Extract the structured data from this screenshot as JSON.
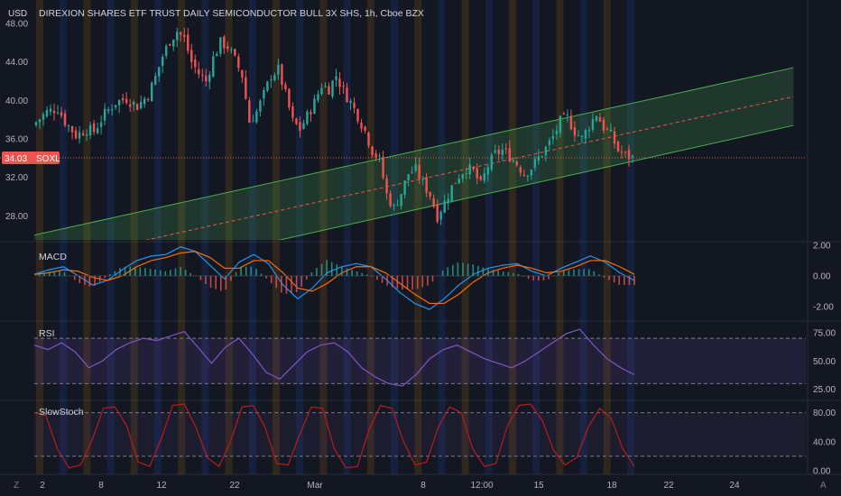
{
  "header": {
    "currency": "USD",
    "title": "DIREXION SHARES ETF TRUST DAILY SEMICONDUCTOR BULL 3X SHS, 1h, Cboe BZX"
  },
  "price_badge": {
    "value": "34.03",
    "symbol": "SOXL"
  },
  "footer": {
    "left_icon_label": "Z",
    "right_icon_label": "A"
  },
  "colors": {
    "background": "#131722",
    "up": "#26a69a",
    "down": "#ef5350",
    "channel_fill": "#4caf50",
    "channel_line": "#4caf50",
    "channel_mid": "#ef5350",
    "macd": "#2196f3",
    "signal": "#ff6d00",
    "rsi": "#7e57c2",
    "stoch": "#b71c1c",
    "axis_text": "#b2b5be"
  },
  "chart_data": [
    {
      "type": "candlestick",
      "title": "DIREXION SHARES ETF TRUST DAILY SEMICONDUCTOR BULL 3X SHS, 1h, Cboe BZX",
      "x_ticks": [
        "2",
        "8",
        "12",
        "22",
        "Mar",
        "8",
        "12:00",
        "15",
        "18",
        "22",
        "24"
      ],
      "y_ticks": [
        "48.00",
        "44.00",
        "40.00",
        "36.00",
        "32.00",
        "28.00"
      ],
      "ylim": [
        25.5,
        48.0
      ],
      "last_price": 34.03,
      "close_path": [
        [
          0,
          37.4
        ],
        [
          4,
          38.8
        ],
        [
          7,
          39.2
        ],
        [
          9,
          37.8
        ],
        [
          12,
          36.4
        ],
        [
          15,
          37.0
        ],
        [
          17,
          36.8
        ],
        [
          20,
          38.6
        ],
        [
          23,
          39.8
        ],
        [
          26,
          40.2
        ],
        [
          29,
          39.4
        ],
        [
          32,
          40.6
        ],
        [
          34,
          42.4
        ],
        [
          36,
          44.6
        ],
        [
          38,
          46.2
        ],
        [
          40,
          47.2
        ],
        [
          42,
          46.4
        ],
        [
          44,
          44.0
        ],
        [
          46,
          42.8
        ],
        [
          48,
          42.0
        ],
        [
          50,
          44.4
        ],
        [
          52,
          46.0
        ],
        [
          54,
          45.6
        ],
        [
          56,
          44.2
        ],
        [
          58,
          42.6
        ],
        [
          60,
          37.8
        ],
        [
          62,
          38.8
        ],
        [
          64,
          40.6
        ],
        [
          66,
          42.6
        ],
        [
          68,
          43.2
        ],
        [
          70,
          40.6
        ],
        [
          72,
          37.8
        ],
        [
          74,
          37.0
        ],
        [
          76,
          38.4
        ],
        [
          78,
          39.8
        ],
        [
          80,
          41.6
        ],
        [
          82,
          41.2
        ],
        [
          84,
          42.6
        ],
        [
          86,
          41.0
        ],
        [
          88,
          39.8
        ],
        [
          90,
          38.4
        ],
        [
          92,
          36.8
        ],
        [
          94,
          34.8
        ],
        [
          96,
          33.8
        ],
        [
          98,
          30.2
        ],
        [
          100,
          28.8
        ],
        [
          102,
          30.4
        ],
        [
          104,
          32.4
        ],
        [
          106,
          32.8
        ],
        [
          108,
          31.4
        ],
        [
          110,
          30.2
        ],
        [
          112,
          28.0
        ],
        [
          114,
          29.4
        ],
        [
          116,
          31.0
        ],
        [
          118,
          32.2
        ],
        [
          120,
          33.0
        ],
        [
          122,
          32.6
        ],
        [
          124,
          31.2
        ],
        [
          126,
          33.2
        ],
        [
          128,
          34.4
        ],
        [
          130,
          34.8
        ],
        [
          132,
          34.2
        ],
        [
          134,
          33.4
        ],
        [
          136,
          32.4
        ],
        [
          138,
          33.0
        ],
        [
          140,
          34.0
        ],
        [
          142,
          35.0
        ],
        [
          144,
          36.2
        ],
        [
          146,
          37.8
        ],
        [
          148,
          38.2
        ],
        [
          150,
          36.8
        ],
        [
          152,
          36.0
        ],
        [
          154,
          37.4
        ],
        [
          156,
          38.6
        ],
        [
          158,
          37.2
        ],
        [
          160,
          36.4
        ],
        [
          162,
          34.8
        ],
        [
          164,
          34.3
        ],
        [
          166,
          34.03
        ]
      ],
      "n_bars": 166,
      "x_axis_range": [
        0,
        166
      ],
      "channel": {
        "upper": [
          [
            0,
            26.0
          ],
          [
            210,
            43.4
          ]
        ],
        "mid": [
          [
            0,
            22.9
          ],
          [
            210,
            40.4
          ]
        ],
        "lower": [
          [
            0,
            19.8
          ],
          [
            210,
            37.4
          ]
        ]
      }
    },
    {
      "type": "line",
      "title": "MACD",
      "y_ticks": [
        "2.00",
        "0.00",
        "-2.00"
      ],
      "ylim": [
        -2.6,
        2.0
      ],
      "series": [
        {
          "values": [
            0.1,
            0.4,
            0.6,
            0.0,
            -0.6,
            -0.3,
            0.4,
            1.0,
            1.3,
            1.4,
            1.9,
            1.6,
            0.7,
            -0.2,
            0.9,
            1.4,
            0.8,
            -0.6,
            -1.5,
            -0.8,
            0.2,
            0.6,
            0.8,
            0.6,
            -0.2,
            -1.1,
            -1.8,
            -2.2,
            -1.5,
            -0.6,
            0.1,
            0.5,
            0.7,
            0.8,
            0.3,
            0.0,
            0.5,
            0.9,
            1.3,
            0.9,
            0.2,
            -0.3
          ]
        },
        {
          "values": [
            0.1,
            0.2,
            0.4,
            0.3,
            -0.1,
            -0.3,
            0.0,
            0.6,
            1.0,
            1.2,
            1.5,
            1.6,
            1.2,
            0.5,
            0.5,
            1.0,
            1.0,
            0.2,
            -0.8,
            -1.0,
            -0.5,
            0.2,
            0.6,
            0.6,
            0.2,
            -0.5,
            -1.2,
            -1.8,
            -1.8,
            -1.2,
            -0.4,
            0.2,
            0.5,
            0.7,
            0.5,
            0.2,
            0.3,
            0.6,
            1.0,
            1.0,
            0.6,
            0.1
          ]
        }
      ]
    },
    {
      "type": "line",
      "title": "RSI",
      "y_ticks": [
        "75.00",
        "50.00",
        "25.00"
      ],
      "ylim": [
        20,
        82
      ],
      "bands": [
        30,
        70
      ],
      "values": [
        64,
        60,
        66,
        58,
        44,
        50,
        60,
        66,
        70,
        68,
        72,
        76,
        62,
        48,
        62,
        70,
        56,
        40,
        34,
        46,
        58,
        64,
        66,
        58,
        44,
        36,
        30,
        28,
        38,
        52,
        60,
        64,
        58,
        52,
        48,
        44,
        50,
        58,
        66,
        74,
        78,
        64,
        52,
        44,
        38
      ]
    },
    {
      "type": "line",
      "title": "SlowStoch",
      "y_ticks": [
        "80.00",
        "40.00",
        "0.00"
      ],
      "ylim": [
        0,
        92
      ],
      "bands": [
        20,
        80
      ],
      "values": [
        80,
        76,
        30,
        4,
        8,
        42,
        86,
        88,
        62,
        12,
        6,
        44,
        90,
        92,
        60,
        18,
        6,
        40,
        88,
        90,
        60,
        10,
        8,
        50,
        88,
        86,
        30,
        4,
        6,
        56,
        90,
        86,
        40,
        8,
        12,
        60,
        88,
        80,
        30,
        6,
        10,
        62,
        90,
        92,
        70,
        28,
        8,
        18,
        60,
        86,
        72,
        30,
        6
      ]
    }
  ]
}
